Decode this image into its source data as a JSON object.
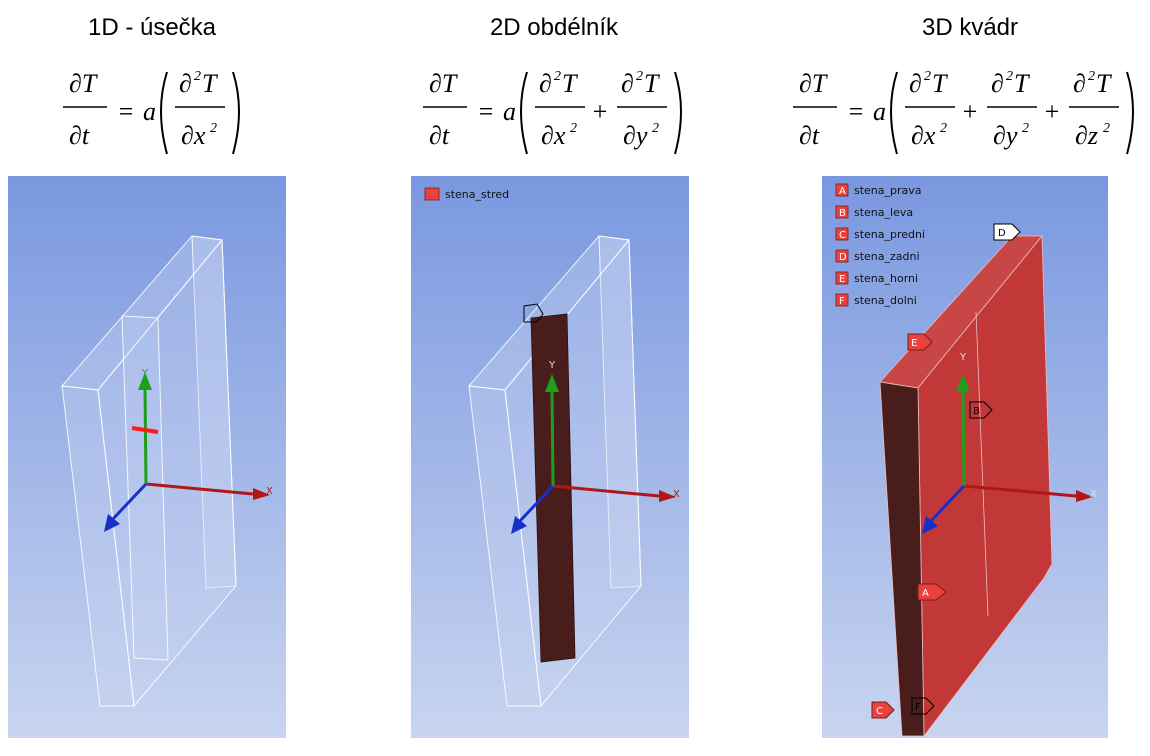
{
  "titles": {
    "col1": "1D - úsečka",
    "col2": "2D obdélník",
    "col3": "3D kvádr"
  },
  "equations": {
    "col1": "∂T/∂t = a(∂²T/∂x²)",
    "col2": "∂T/∂t = a(∂²T/∂x² + ∂²T/∂y²)",
    "col3": "∂T/∂t = a(∂²T/∂x² + ∂²T/∂y² + ∂²T/∂z²)"
  },
  "axes": {
    "x": "X",
    "y": "Y"
  },
  "panel2": {
    "legend": [
      {
        "letter": "",
        "label": "stena_stred",
        "color": "#e8423f"
      }
    ]
  },
  "panel3": {
    "legend": [
      {
        "letter": "A",
        "label": "stena_prava"
      },
      {
        "letter": "B",
        "label": "stena_leva"
      },
      {
        "letter": "C",
        "label": "stena_predni"
      },
      {
        "letter": "D",
        "label": "stena_zadni"
      },
      {
        "letter": "E",
        "label": "stena_horni"
      },
      {
        "letter": "F",
        "label": "stena_dolni"
      }
    ],
    "tags": {
      "A": "A",
      "B": "B",
      "C": "C",
      "D": "D",
      "E": "E",
      "F": "F"
    }
  },
  "colors": {
    "bg_top": "#7a98e0",
    "bg_bottom": "#c8d4f0",
    "face_red": "#c43a3a",
    "face_dark": "#4a1d1d",
    "legend_red": "#e8423f",
    "axis_x": "#b01818",
    "axis_y": "#1ca01c",
    "axis_z": "#1830c8"
  }
}
